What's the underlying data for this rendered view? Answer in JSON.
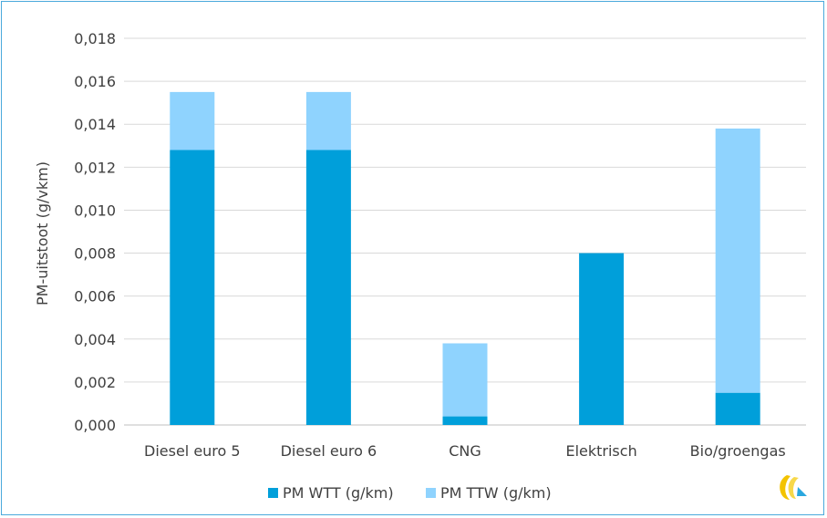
{
  "chart_data": {
    "type": "bar",
    "stacked": true,
    "title": "",
    "xlabel": "",
    "ylabel": "PM-uitstoot (g/vkm)",
    "ylim": [
      0,
      0.018
    ],
    "ytick_step": 0.002,
    "ytick_labels": [
      "0,000",
      "0,002",
      "0,004",
      "0,006",
      "0,008",
      "0,010",
      "0,012",
      "0,014",
      "0,016",
      "0,018"
    ],
    "grid": true,
    "legend_position": "bottom",
    "categories": [
      "Diesel euro 5",
      "Diesel euro 6",
      "CNG",
      "Elektrisch",
      "Bio/groengas"
    ],
    "series": [
      {
        "name": "PM WTT (g/km)",
        "color": "#009fda",
        "values": [
          0.0128,
          0.0128,
          0.0004,
          0.008,
          0.0015
        ]
      },
      {
        "name": "PM TTW (g/km)",
        "color": "#8fd3fe",
        "values": [
          0.0027,
          0.0027,
          0.0034,
          0.0,
          0.0123
        ]
      }
    ]
  },
  "logo": {
    "icon": "ce-delft-logo-icon"
  }
}
